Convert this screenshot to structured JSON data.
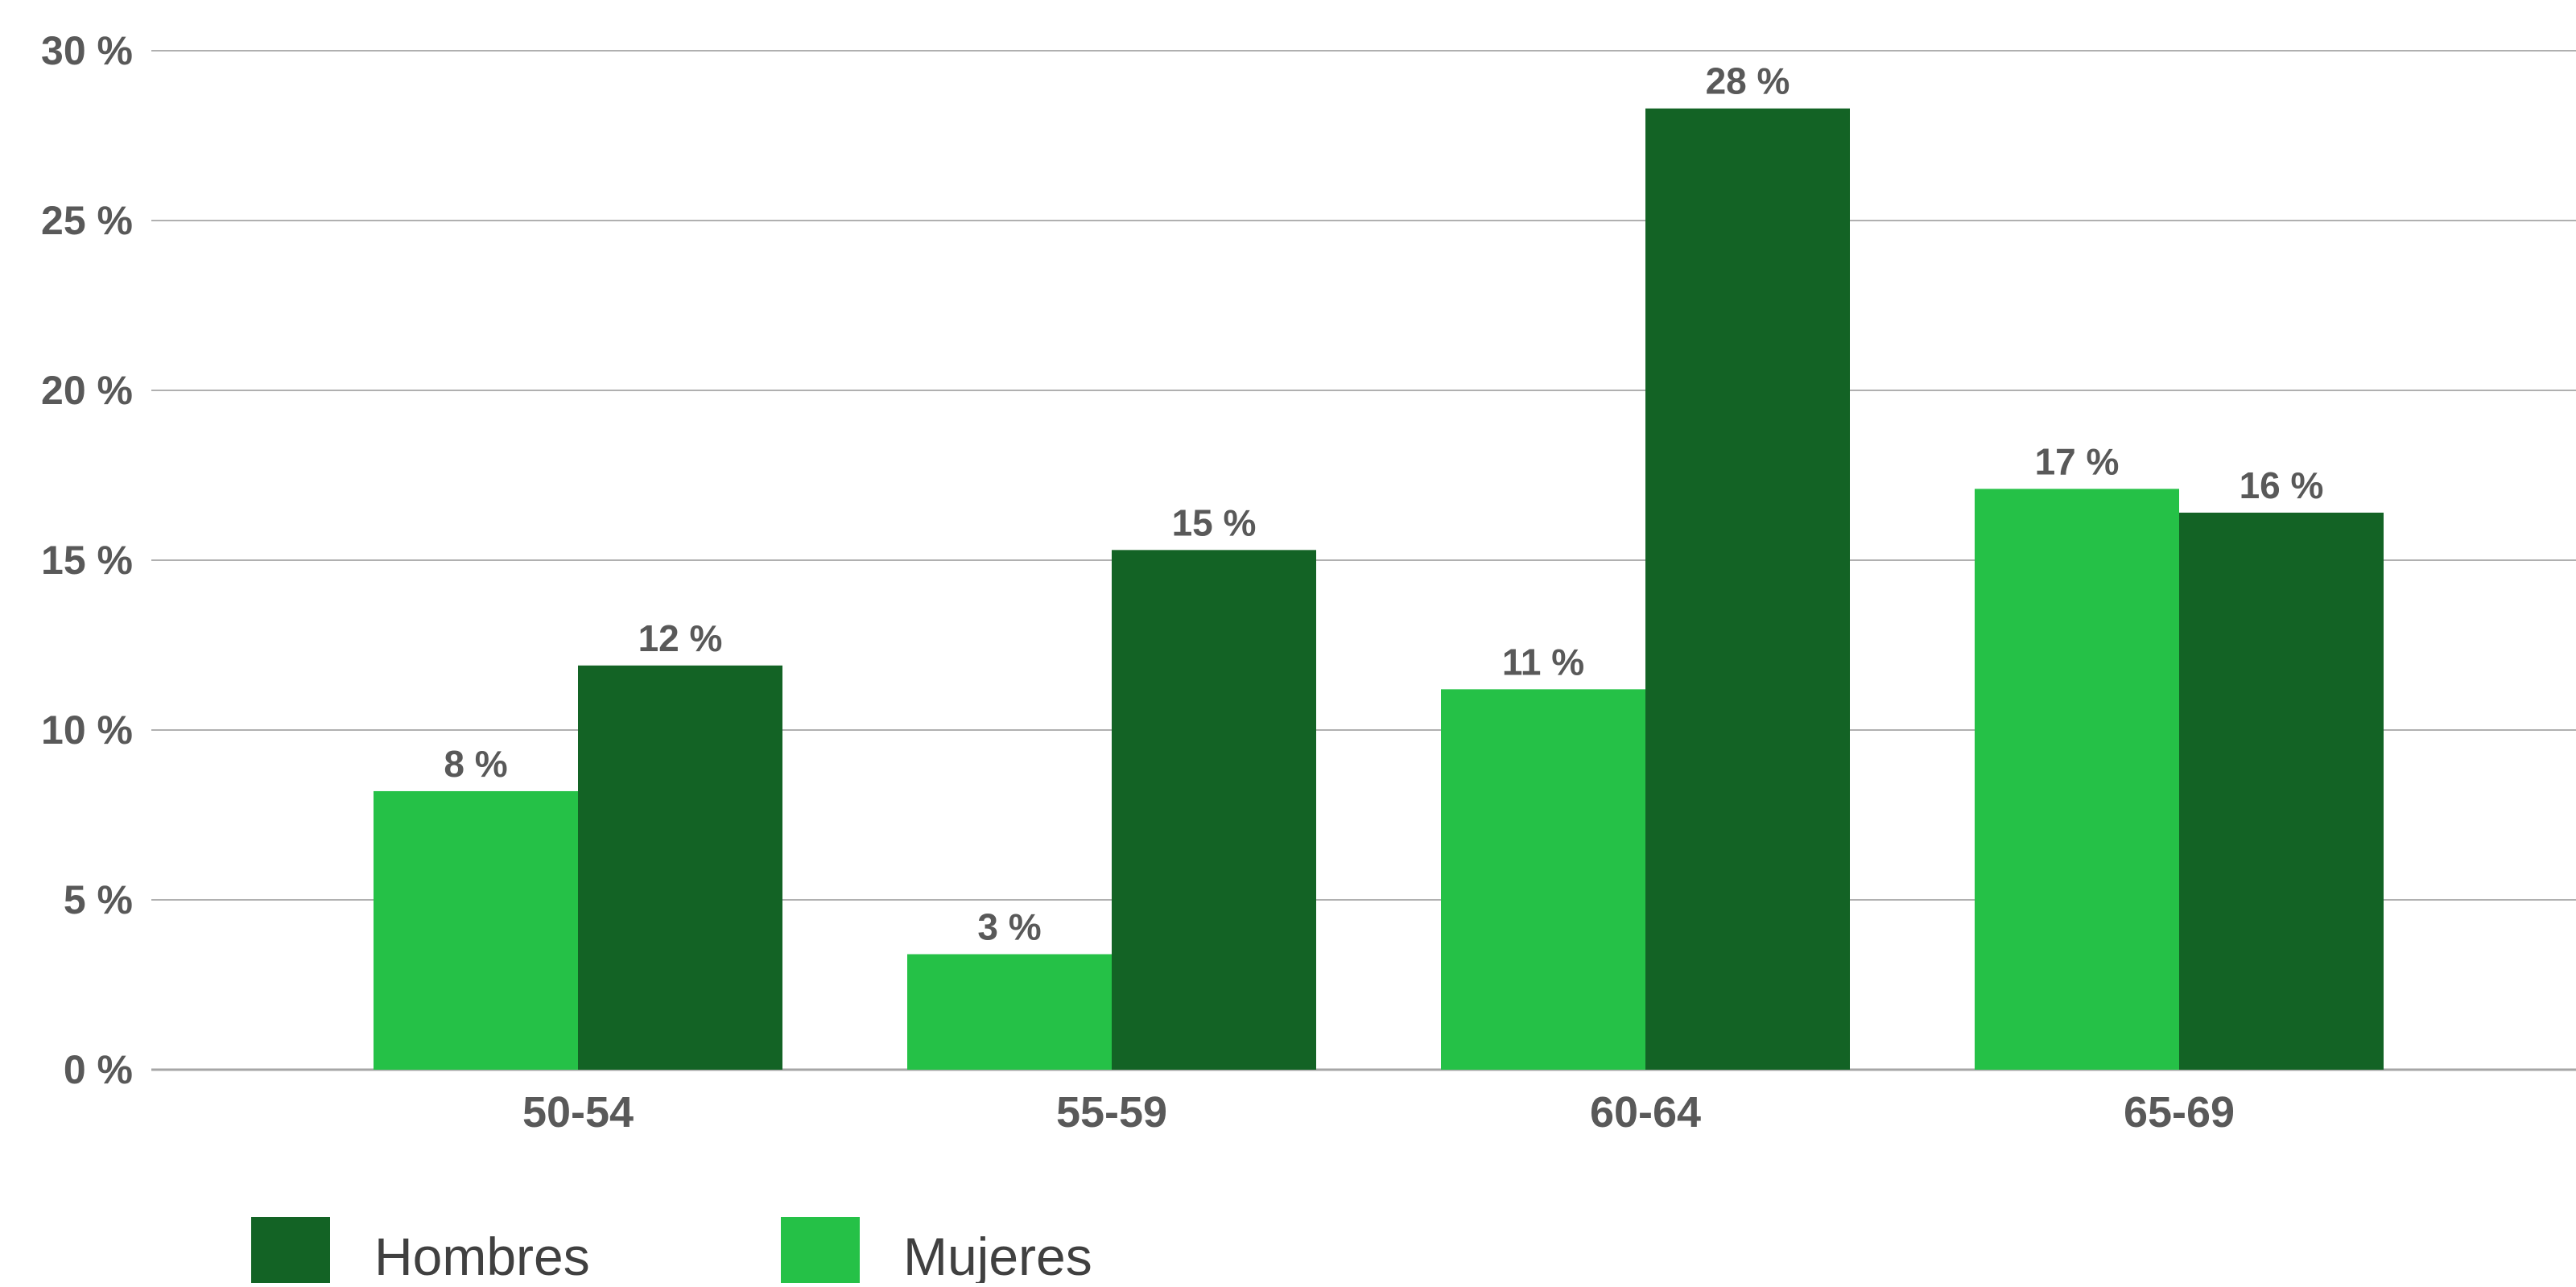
{
  "chart_data": {
    "type": "bar",
    "title": "",
    "xlabel": "",
    "ylabel": "",
    "categories": [
      "50-54",
      "55-59",
      "60-64",
      "65-69"
    ],
    "series": [
      {
        "name": "Mujeres",
        "color": "#25c147",
        "values": [
          8.2,
          3.4,
          11.2,
          17.1
        ],
        "labels": [
          "8 %",
          "3 %",
          "11 %",
          "17 %"
        ]
      },
      {
        "name": "Hombres",
        "color": "#136325",
        "values": [
          11.9,
          15.3,
          28.3,
          16.4
        ],
        "labels": [
          "12 %",
          "15 %",
          "28 %",
          "16 %"
        ]
      }
    ],
    "ylim": [
      0,
      30
    ],
    "yticks": [
      0,
      5,
      10,
      15,
      20,
      25,
      30
    ],
    "ytick_labels": [
      "0 %",
      "5 %",
      "10 %",
      "15 %",
      "20 %",
      "25 %",
      "30 %"
    ],
    "grid": true,
    "legend_position": "bottom-left",
    "legend": [
      {
        "name": "Hombres",
        "color": "#136325"
      },
      {
        "name": "Mujeres",
        "color": "#25c147"
      }
    ]
  }
}
